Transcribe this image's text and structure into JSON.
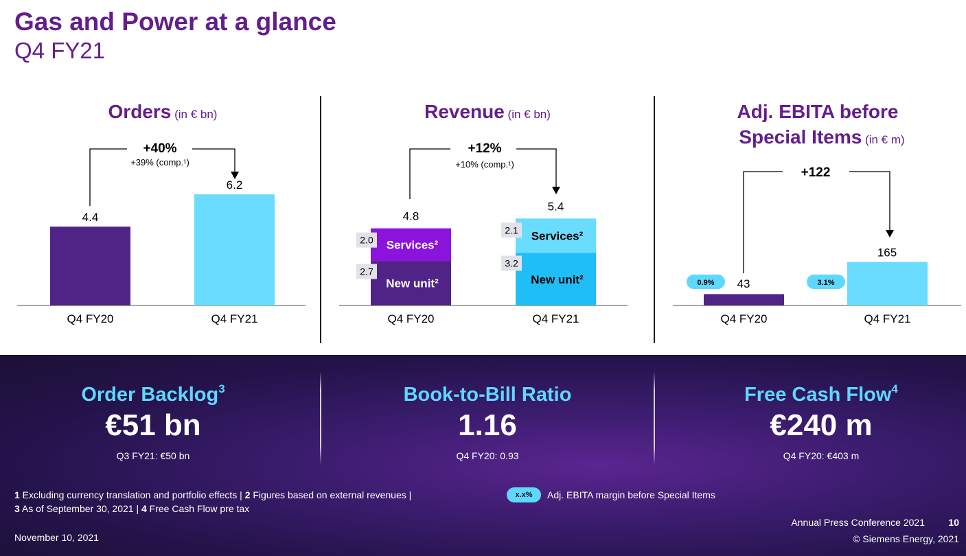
{
  "header": {
    "title": "Gas and Power at a glance",
    "subtitle": "Q4 FY21"
  },
  "colors": {
    "purple_dark": "#4f2486",
    "purple_bright": "#8a14dc",
    "cyan_light": "#69dcff",
    "cyan": "#1fbef6",
    "title_purple": "#641e8c",
    "accent_cyan": "#5ed8ff"
  },
  "chart_data": [
    {
      "type": "bar",
      "title": "Orders",
      "unit": "(in € bn)",
      "categories": [
        "Q4 FY20",
        "Q4 FY21"
      ],
      "values": [
        4.4,
        6.2
      ],
      "value_labels": [
        "4.4",
        "6.2"
      ],
      "growth": "+40%",
      "growth_sub": "+39% (comp.¹)"
    },
    {
      "type": "bar",
      "stacked": true,
      "title": "Revenue",
      "unit": "(in € bn)",
      "categories": [
        "Q4 FY20",
        "Q4 FY21"
      ],
      "totals": [
        4.8,
        5.4
      ],
      "total_labels": [
        "4.8",
        "5.4"
      ],
      "series": [
        {
          "name": "New unit²",
          "values": [
            2.7,
            3.2
          ],
          "value_labels": [
            "2.7",
            "3.2"
          ]
        },
        {
          "name": "Services²",
          "values": [
            2.0,
            2.1
          ],
          "value_labels": [
            "2.0",
            "2.1"
          ]
        }
      ],
      "growth": "+12%",
      "growth_sub": "+10% (comp.¹)"
    },
    {
      "type": "bar",
      "title_line1": "Adj. EBITA before",
      "title_line2": "Special Items",
      "unit": "(in € m)",
      "categories": [
        "Q4 FY20",
        "Q4 FY21"
      ],
      "values": [
        43,
        165
      ],
      "value_labels": [
        "43",
        "165"
      ],
      "margins": [
        "0.9%",
        "3.1%"
      ],
      "growth": "+122"
    }
  ],
  "kpis": [
    {
      "title": "Order Backlog",
      "sup": "3",
      "value": "€51 bn",
      "sub": "Q3 FY21: €50 bn"
    },
    {
      "title": "Book-to-Bill Ratio",
      "sup": "",
      "value": "1.16",
      "sub": "Q4 FY20: 0.93"
    },
    {
      "title": "Free Cash Flow",
      "sup": "4",
      "value": "€240 m",
      "sub": "Q4 FY20: €403 m"
    }
  ],
  "footnotes": {
    "n1": "1",
    "t1": " Excluding currency translation and portfolio effects | ",
    "n2": "2",
    "t2": " Figures based on external revenues |",
    "n3": "3",
    "t3": " As of September 30, 2021 | ",
    "n4": "4",
    "t4": " Free Cash Flow pre tax"
  },
  "legend": {
    "pill": "x.x%",
    "text": "Adj. EBITA margin before Special Items"
  },
  "footer": {
    "date": "November 10, 2021",
    "conference": "Annual Press Conference 2021",
    "page": "10",
    "copyright": "© Siemens Energy, 2021"
  }
}
